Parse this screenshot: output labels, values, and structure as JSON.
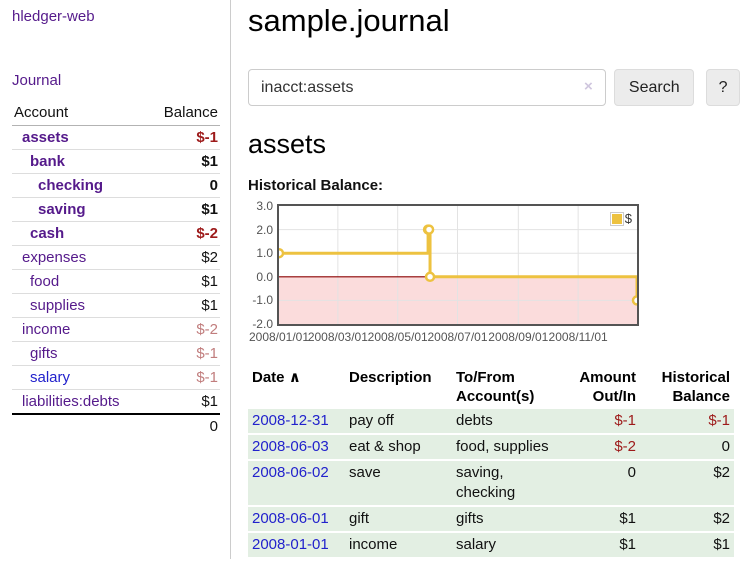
{
  "colors": {
    "purple": "#551a8b",
    "blue": "#2222cc",
    "negative_strong": "#9d1a1a",
    "negative_soft": "#c17d7d",
    "row_green": "#e3efe3",
    "chart_line": "#edc240",
    "chart_frame": "#545454",
    "chart_grid": "#e3e3e3",
    "chart_negative_bg": "#fbdcdc",
    "chart_zero_line": "#8b0000"
  },
  "app": {
    "brand": "hledger-web"
  },
  "sidebar": {
    "nav_journal": "Journal",
    "accounts_header": {
      "account": "Account",
      "balance": "Balance"
    },
    "accounts": [
      {
        "name": "assets",
        "level": 0,
        "bold": true,
        "balance": "$-1",
        "balance_style": "neg-strong",
        "link_style": "purple"
      },
      {
        "name": "bank",
        "level": 1,
        "bold": true,
        "balance": "$1",
        "balance_style": "normal",
        "link_style": "purple"
      },
      {
        "name": "checking",
        "level": 2,
        "bold": true,
        "balance": "0",
        "balance_style": "normal",
        "link_style": "purple"
      },
      {
        "name": "saving",
        "level": 2,
        "bold": true,
        "balance": "$1",
        "balance_style": "normal",
        "link_style": "purple"
      },
      {
        "name": "cash",
        "level": 1,
        "bold": true,
        "balance": "$-2",
        "balance_style": "neg-strong",
        "link_style": "purple"
      },
      {
        "name": "expenses",
        "level": 0,
        "bold": false,
        "balance": "$2",
        "balance_style": "normal",
        "link_style": "purple"
      },
      {
        "name": "food",
        "level": 1,
        "bold": false,
        "balance": "$1",
        "balance_style": "normal",
        "link_style": "purple"
      },
      {
        "name": "supplies",
        "level": 1,
        "bold": false,
        "balance": "$1",
        "balance_style": "normal",
        "link_style": "purple"
      },
      {
        "name": "income",
        "level": 0,
        "bold": false,
        "balance": "$-2",
        "balance_style": "neg-soft",
        "link_style": "purple"
      },
      {
        "name": "gifts",
        "level": 1,
        "bold": false,
        "balance": "$-1",
        "balance_style": "neg-soft",
        "link_style": "purple"
      },
      {
        "name": "salary",
        "level": 1,
        "bold": false,
        "balance": "$-1",
        "balance_style": "neg-soft",
        "link_style": "blue"
      },
      {
        "name": "liabilities:debts",
        "level": 0,
        "bold": false,
        "balance": "$1",
        "balance_style": "normal",
        "link_style": "purple"
      }
    ],
    "total": "0"
  },
  "header": {
    "title": "sample.journal"
  },
  "search": {
    "query": "inacct:assets",
    "clear_icon": "×",
    "button": "Search",
    "help_button": "?"
  },
  "account_page": {
    "heading": "assets",
    "chart_title": "Historical Balance:"
  },
  "chart_data": {
    "type": "line",
    "title": "Historical Balance:",
    "xlim_days": [
      0,
      365
    ],
    "ylim": [
      -2,
      3
    ],
    "grid": true,
    "legend_position": "top-right",
    "legend": {
      "label": "$"
    },
    "series": [
      {
        "name": "$",
        "step": true,
        "points": [
          {
            "date": "2008-01-01",
            "day": 0,
            "value": 1
          },
          {
            "date": "2008-06-01",
            "day": 152,
            "value": 2
          },
          {
            "date": "2008-06-02",
            "day": 153,
            "value": 2
          },
          {
            "date": "2008-06-03",
            "day": 154,
            "value": 0
          },
          {
            "date": "2008-12-31",
            "day": 365,
            "value": -1
          }
        ]
      }
    ],
    "x_ticks": [
      {
        "day": 0,
        "label": "2008/01/01"
      },
      {
        "day": 60,
        "label": "2008/03/01"
      },
      {
        "day": 121,
        "label": "2008/05/01"
      },
      {
        "day": 182,
        "label": "2008/07/01"
      },
      {
        "day": 244,
        "label": "2008/09/01"
      },
      {
        "day": 305,
        "label": "2008/11/01"
      }
    ],
    "y_ticks": [
      {
        "value": 3,
        "label": "3.0"
      },
      {
        "value": 2,
        "label": "2.0"
      },
      {
        "value": 1,
        "label": "1.0"
      },
      {
        "value": 0,
        "label": "0.0"
      },
      {
        "value": -1,
        "label": "-1.0"
      },
      {
        "value": -2,
        "label": "-2.0"
      }
    ]
  },
  "register": {
    "sort_indicator": "∧",
    "columns": [
      {
        "line1": "Date",
        "line2": ""
      },
      {
        "line1": "Description",
        "line2": ""
      },
      {
        "line1": "To/From",
        "line2": "Account(s)"
      },
      {
        "line1": "Amount",
        "line2": "Out/In"
      },
      {
        "line1": "Historical",
        "line2": "Balance"
      }
    ],
    "rows": [
      {
        "date": "2008-12-31",
        "description": "pay off",
        "accounts": "debts",
        "amount": "$-1",
        "amount_negative": true,
        "balance": "$-1",
        "balance_negative": true
      },
      {
        "date": "2008-06-03",
        "description": "eat & shop",
        "accounts": "food, supplies",
        "amount": "$-2",
        "amount_negative": true,
        "balance": "0",
        "balance_negative": false
      },
      {
        "date": "2008-06-02",
        "description": "save",
        "accounts": "saving, checking",
        "amount": "0",
        "amount_negative": false,
        "balance": "$2",
        "balance_negative": false
      },
      {
        "date": "2008-06-01",
        "description": "gift",
        "accounts": "gifts",
        "amount": "$1",
        "amount_negative": false,
        "balance": "$2",
        "balance_negative": false
      },
      {
        "date": "2008-01-01",
        "description": "income",
        "accounts": "salary",
        "amount": "$1",
        "amount_negative": false,
        "balance": "$1",
        "balance_negative": false
      }
    ]
  }
}
